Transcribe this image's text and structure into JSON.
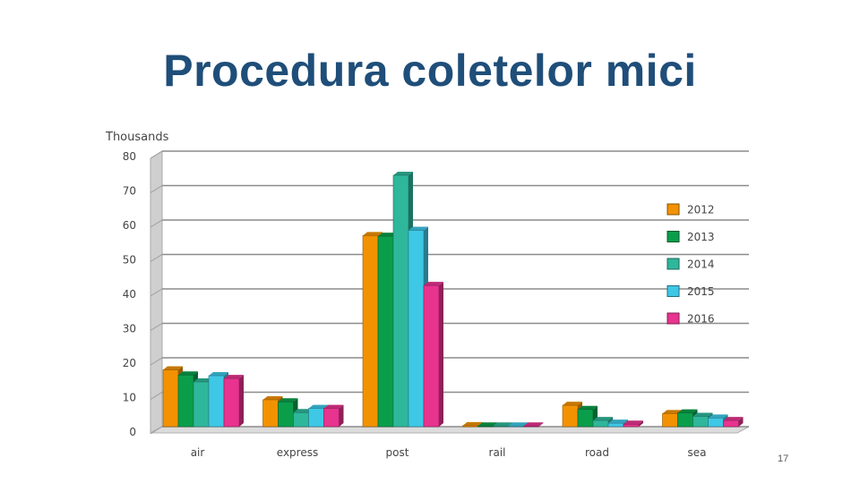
{
  "slide": {
    "title": "Procedura coletelor mici",
    "page_number": "17"
  },
  "chart_data": {
    "type": "bar",
    "title": "Procedura coletelor mici",
    "xlabel": "",
    "ylabel": "",
    "unit_label": "Thousands",
    "ylim": [
      0,
      80
    ],
    "yticks": [
      "0",
      "10",
      "20",
      "30",
      "40",
      "50",
      "60",
      "70",
      "80"
    ],
    "grid": true,
    "legend_position": "right",
    "categories": [
      "air",
      "express",
      "post",
      "rail",
      "road",
      "sea"
    ],
    "series": [
      {
        "name": "2012",
        "color": "#f39200",
        "values": [
          16.5,
          7.8,
          55.5,
          0.3,
          6.2,
          3.8
        ]
      },
      {
        "name": "2013",
        "color": "#0a9e4b",
        "values": [
          15,
          7.2,
          55.3,
          0.2,
          5,
          4
        ]
      },
      {
        "name": "2014",
        "color": "#2fb79b",
        "values": [
          13,
          4.1,
          73,
          0.2,
          1.8,
          3
        ]
      },
      {
        "name": "2015",
        "color": "#3ec8e6",
        "values": [
          14.8,
          5.3,
          57,
          0.2,
          1,
          2.5
        ]
      },
      {
        "name": "2016",
        "color": "#e8338f",
        "values": [
          14,
          5.3,
          41,
          0.2,
          0.7,
          1.8
        ]
      }
    ]
  }
}
